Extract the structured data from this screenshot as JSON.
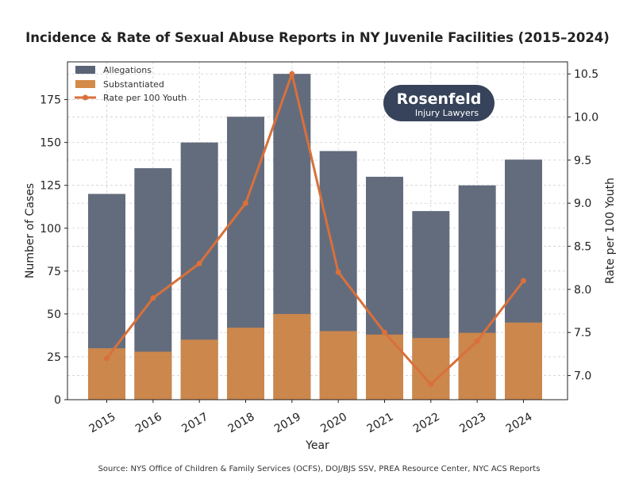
{
  "chart_data": {
    "type": "bar+line",
    "title": "Incidence & Rate of Sexual Abuse Reports in NY Juvenile Facilities (2015–2024)",
    "xlabel": "Year",
    "ylabel": "Number of Cases",
    "y2label": "Rate per 100 Youth",
    "categories": [
      "2015",
      "2016",
      "2017",
      "2018",
      "2019",
      "2020",
      "2021",
      "2022",
      "2023",
      "2024"
    ],
    "series": [
      {
        "name": "Allegations",
        "type": "bar",
        "axis": "left",
        "color": "#5b6476",
        "values": [
          120,
          135,
          150,
          165,
          190,
          145,
          130,
          110,
          125,
          140
        ]
      },
      {
        "name": "Substantiated",
        "type": "bar",
        "axis": "left",
        "color": "#d48a48",
        "values": [
          30,
          28,
          35,
          42,
          50,
          40,
          38,
          36,
          39,
          45
        ]
      },
      {
        "name": "Rate per 100 Youth",
        "type": "line",
        "axis": "right",
        "color": "#d9703a",
        "values": [
          7.2,
          7.9,
          8.3,
          9.0,
          10.5,
          8.2,
          7.5,
          6.9,
          7.4,
          8.1
        ]
      }
    ],
    "ylim": [
      0,
      197
    ],
    "y2lim": [
      6.72,
      10.64
    ],
    "yticks": [
      "0",
      "25",
      "50",
      "75",
      "100",
      "125",
      "150",
      "175"
    ],
    "y2ticks": [
      "7.0",
      "7.5",
      "8.0",
      "8.5",
      "9.0",
      "9.5",
      "10.0",
      "10.5"
    ],
    "grid": true,
    "legend_position": "top-left",
    "source": "Source: NYS Office of Children & Family Services (OCFS), DOJ/BJS SSV, PREA Resource Center, NYC ACS Reports"
  },
  "logo": {
    "name": "Rosenfeld",
    "tagline": "Injury Lawyers",
    "color": "#36435a"
  }
}
